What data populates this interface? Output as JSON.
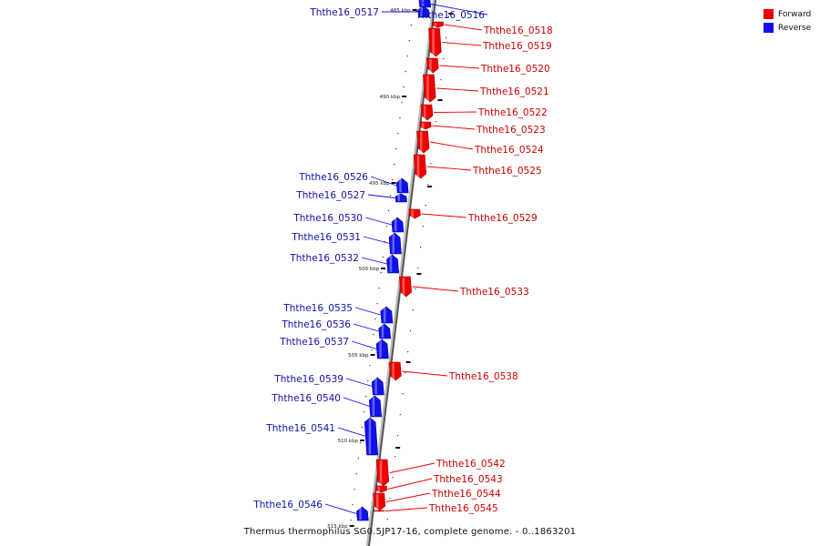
{
  "legend": {
    "items": [
      {
        "label": "Forward",
        "color": "#ee0000"
      },
      {
        "label": "Reverse",
        "color": "#1010ee"
      }
    ]
  },
  "caption": "Thermus thermophilus SG0.5JP17-16, complete genome. - 0..1863201",
  "colors": {
    "forward": "#ee0000",
    "reverse": "#1010ee",
    "axis": "#999999"
  },
  "ticks": [
    "485 kbp",
    "490 kbp",
    "495 kbp",
    "500 kbp",
    "505 kbp",
    "510 kbp",
    "515 kbp"
  ],
  "genes": [
    {
      "id": "Ththe16_0516",
      "strand": "reverse"
    },
    {
      "id": "Ththe16_0517",
      "strand": "reverse"
    },
    {
      "id": "Ththe16_0518",
      "strand": "forward"
    },
    {
      "id": "Ththe16_0519",
      "strand": "forward"
    },
    {
      "id": "Ththe16_0520",
      "strand": "forward"
    },
    {
      "id": "Ththe16_0521",
      "strand": "forward"
    },
    {
      "id": "Ththe16_0522",
      "strand": "forward"
    },
    {
      "id": "Ththe16_0523",
      "strand": "forward"
    },
    {
      "id": "Ththe16_0524",
      "strand": "forward"
    },
    {
      "id": "Ththe16_0525",
      "strand": "forward"
    },
    {
      "id": "Ththe16_0526",
      "strand": "reverse"
    },
    {
      "id": "Ththe16_0527",
      "strand": "reverse"
    },
    {
      "id": "Ththe16_0529",
      "strand": "forward"
    },
    {
      "id": "Ththe16_0530",
      "strand": "reverse"
    },
    {
      "id": "Ththe16_0531",
      "strand": "reverse"
    },
    {
      "id": "Ththe16_0532",
      "strand": "reverse"
    },
    {
      "id": "Ththe16_0533",
      "strand": "forward"
    },
    {
      "id": "Ththe16_0535",
      "strand": "reverse"
    },
    {
      "id": "Ththe16_0536",
      "strand": "reverse"
    },
    {
      "id": "Ththe16_0537",
      "strand": "reverse"
    },
    {
      "id": "Ththe16_0538",
      "strand": "forward"
    },
    {
      "id": "Ththe16_0539",
      "strand": "reverse"
    },
    {
      "id": "Ththe16_0540",
      "strand": "reverse"
    },
    {
      "id": "Ththe16_0541",
      "strand": "reverse"
    },
    {
      "id": "Ththe16_0542",
      "strand": "forward"
    },
    {
      "id": "Ththe16_0543",
      "strand": "forward"
    },
    {
      "id": "Ththe16_0544",
      "strand": "forward"
    },
    {
      "id": "Ththe16_0545",
      "strand": "forward"
    },
    {
      "id": "Ththe16_0546",
      "strand": "reverse"
    }
  ]
}
